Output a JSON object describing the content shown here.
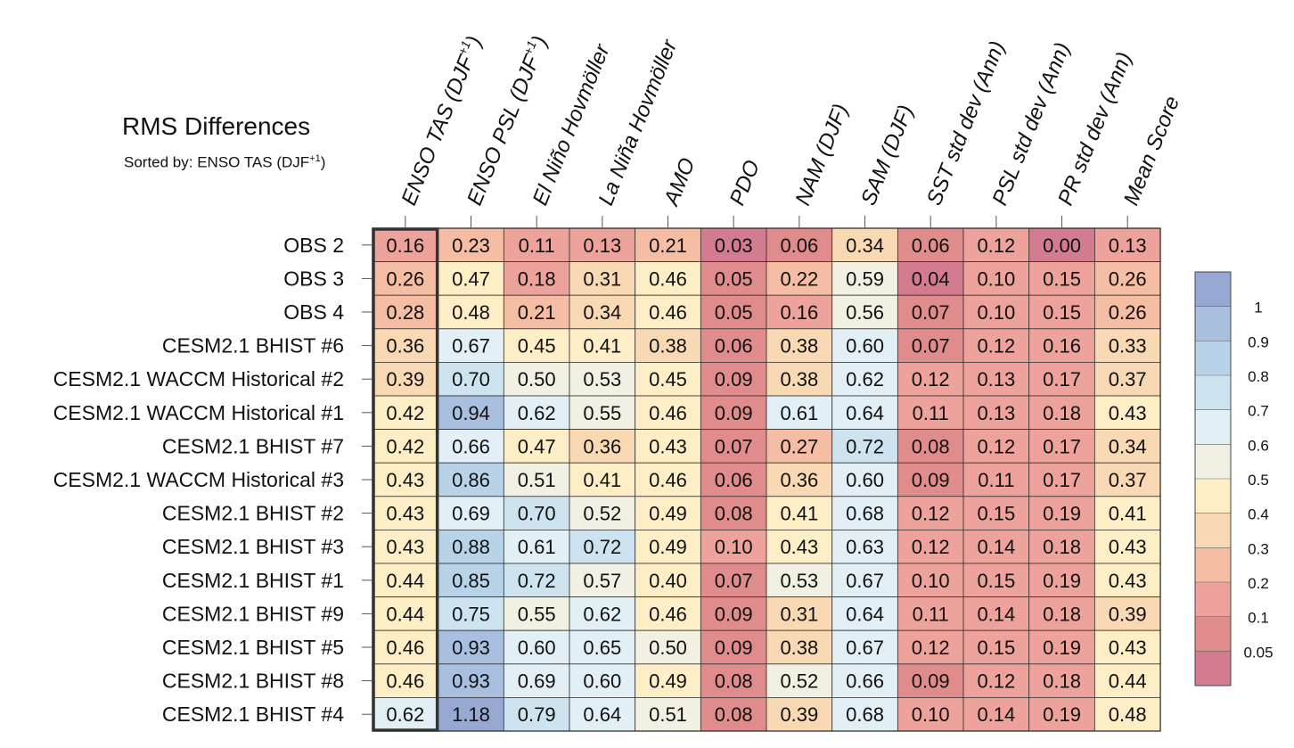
{
  "chart_data": {
    "type": "heatmap",
    "title": "RMS Differences",
    "subtitle": {
      "prefix": "Sorted by: ENSO TAS (DJF",
      "superscript": "+1",
      "suffix": ")"
    },
    "columns": [
      {
        "base": "ENSO TAS (DJF",
        "sup": "+1",
        "tail": ")"
      },
      {
        "base": "ENSO PSL (DJF",
        "sup": "+1",
        "tail": ")"
      },
      {
        "base": "El Niño Hovmöller",
        "sup": "",
        "tail": ""
      },
      {
        "base": "La Niña Hovmöller",
        "sup": "",
        "tail": ""
      },
      {
        "base": "AMO",
        "sup": "",
        "tail": ""
      },
      {
        "base": "PDO",
        "sup": "",
        "tail": ""
      },
      {
        "base": "NAM (DJF)",
        "sup": "",
        "tail": ""
      },
      {
        "base": "SAM (DJF)",
        "sup": "",
        "tail": ""
      },
      {
        "base": "SST std dev (Ann)",
        "sup": "",
        "tail": ""
      },
      {
        "base": "PSL std dev (Ann)",
        "sup": "",
        "tail": ""
      },
      {
        "base": "PR std dev (Ann)",
        "sup": "",
        "tail": ""
      },
      {
        "base": "Mean Score",
        "sup": "",
        "tail": ""
      }
    ],
    "rows": [
      "OBS 2",
      "OBS 3",
      "OBS 4",
      "CESM2.1 BHIST #6",
      "CESM2.1 WACCM Historical #2",
      "CESM2.1 WACCM Historical #1",
      "CESM2.1 BHIST #7",
      "CESM2.1 WACCM Historical #3",
      "CESM2.1 BHIST #2",
      "CESM2.1 BHIST #3",
      "CESM2.1 BHIST #1",
      "CESM2.1 BHIST #9",
      "CESM2.1 BHIST #5",
      "CESM2.1 BHIST #8",
      "CESM2.1 BHIST #4"
    ],
    "values": [
      [
        "0.16",
        "0.23",
        "0.11",
        "0.13",
        "0.21",
        "0.03",
        "0.06",
        "0.34",
        "0.06",
        "0.12",
        "0.00",
        "0.13"
      ],
      [
        "0.26",
        "0.47",
        "0.18",
        "0.31",
        "0.46",
        "0.05",
        "0.22",
        "0.59",
        "0.04",
        "0.10",
        "0.15",
        "0.26"
      ],
      [
        "0.28",
        "0.48",
        "0.21",
        "0.34",
        "0.46",
        "0.05",
        "0.16",
        "0.56",
        "0.07",
        "0.10",
        "0.15",
        "0.26"
      ],
      [
        "0.36",
        "0.67",
        "0.45",
        "0.41",
        "0.38",
        "0.06",
        "0.38",
        "0.60",
        "0.07",
        "0.12",
        "0.16",
        "0.33"
      ],
      [
        "0.39",
        "0.70",
        "0.50",
        "0.53",
        "0.45",
        "0.09",
        "0.38",
        "0.62",
        "0.12",
        "0.13",
        "0.17",
        "0.37"
      ],
      [
        "0.42",
        "0.94",
        "0.62",
        "0.55",
        "0.46",
        "0.09",
        "0.61",
        "0.64",
        "0.11",
        "0.13",
        "0.18",
        "0.43"
      ],
      [
        "0.42",
        "0.66",
        "0.47",
        "0.36",
        "0.43",
        "0.07",
        "0.27",
        "0.72",
        "0.08",
        "0.12",
        "0.17",
        "0.34"
      ],
      [
        "0.43",
        "0.86",
        "0.51",
        "0.41",
        "0.46",
        "0.06",
        "0.36",
        "0.60",
        "0.09",
        "0.11",
        "0.17",
        "0.37"
      ],
      [
        "0.43",
        "0.69",
        "0.70",
        "0.52",
        "0.49",
        "0.08",
        "0.41",
        "0.68",
        "0.12",
        "0.15",
        "0.19",
        "0.41"
      ],
      [
        "0.43",
        "0.88",
        "0.61",
        "0.72",
        "0.49",
        "0.10",
        "0.43",
        "0.63",
        "0.12",
        "0.14",
        "0.18",
        "0.43"
      ],
      [
        "0.44",
        "0.85",
        "0.72",
        "0.57",
        "0.40",
        "0.07",
        "0.53",
        "0.67",
        "0.10",
        "0.15",
        "0.19",
        "0.43"
      ],
      [
        "0.44",
        "0.75",
        "0.55",
        "0.62",
        "0.46",
        "0.09",
        "0.31",
        "0.64",
        "0.11",
        "0.14",
        "0.18",
        "0.39"
      ],
      [
        "0.46",
        "0.93",
        "0.60",
        "0.65",
        "0.50",
        "0.09",
        "0.38",
        "0.67",
        "0.12",
        "0.15",
        "0.19",
        "0.43"
      ],
      [
        "0.46",
        "0.93",
        "0.69",
        "0.60",
        "0.49",
        "0.08",
        "0.52",
        "0.66",
        "0.09",
        "0.12",
        "0.18",
        "0.44"
      ],
      [
        "0.62",
        "1.18",
        "0.79",
        "0.64",
        "0.51",
        "0.08",
        "0.39",
        "0.68",
        "0.10",
        "0.14",
        "0.19",
        "0.48"
      ]
    ],
    "highlighted_column": 0,
    "colorbar": {
      "levels": [
        "0.05",
        "0.1",
        "0.2",
        "0.3",
        "0.4",
        "0.5",
        "0.6",
        "0.7",
        "0.8",
        "0.9",
        "1"
      ],
      "bin_colors": [
        "#d37b8f",
        "#e08c8c",
        "#eda29b",
        "#f4bda4",
        "#f9d9b4",
        "#fdeec5",
        "#f2f0e2",
        "#e2eff5",
        "#cde3ef",
        "#b8d3e7",
        "#a8bfdf",
        "#97a9d3"
      ]
    }
  }
}
